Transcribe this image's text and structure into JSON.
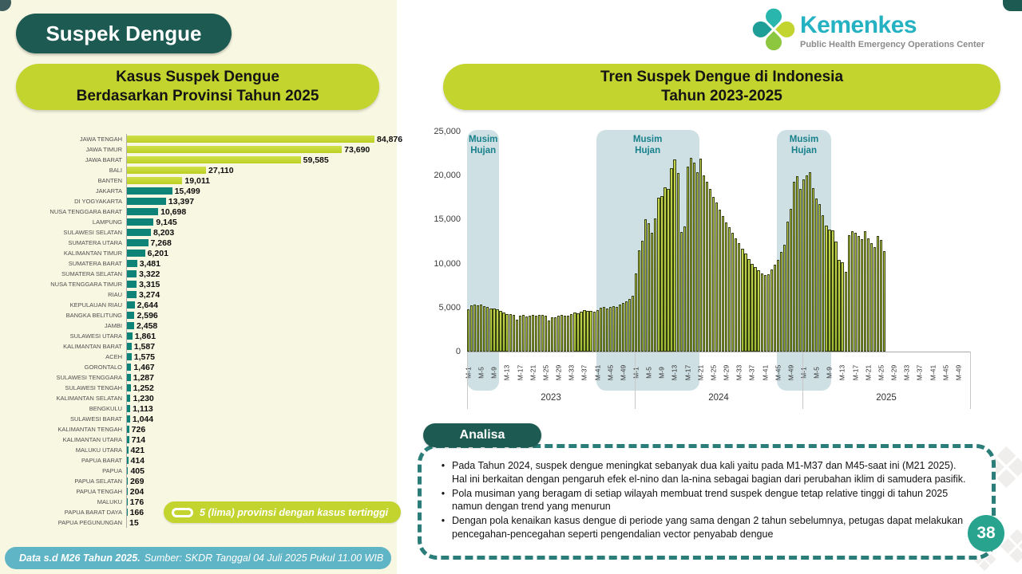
{
  "page": {
    "number": "38"
  },
  "header": {
    "title": "Suspek Dengue"
  },
  "logo": {
    "brand": "Kemenkes",
    "subtitle": "Public Health Emergency Operations Center"
  },
  "left_chart_panel": {
    "title_line1": "Kasus Suspek Dengue",
    "title_line2": "Berdasarkan Provinsi Tahun 2025",
    "legend_label": "5 (lima) provinsi dengan kasus tertinggi",
    "footnote_bold": "Data s.d M26 Tahun 2025.",
    "footnote_regular": "Sumber: SKDR Tanggal 04 Juli 2025 Pukul 11.00 WIB"
  },
  "right_chart_panel": {
    "title_line1": "Tren Suspek Dengue di Indonesia",
    "title_line2": "Tahun 2023-2025"
  },
  "analysis": {
    "title": "Analisa",
    "bullets": [
      "Pada Tahun 2024, suspek dengue meningkat sebanyak dua kali yaitu pada M1-M37 dan M45-saat ini (M21 2025). Hal ini berkaitan dengan pengaruh efek el-nino dan la-nina sebagai bagian dari perubahan iklim di samudera pasifik.",
      "Pola musiman yang beragam di setiap wilayah membuat trend suspek dengue tetap relative tinggi di tahun 2025 namun dengan trend yang menurun",
      "Dengan pola kenaikan kasus dengue di periode yang sama dengan 2 tahun sebelumnya, petugas dapat melakukan pencegahan-pencegahan seperti pengendalian vector penyabab dengue"
    ]
  },
  "colors": {
    "lime": "#c3d42e",
    "teal_bar": "#0e8478",
    "dark_teal": "#1d5a52",
    "season_band": "#cfe0e5",
    "footer_blue": "#5fb4c5",
    "badge_teal": "#28a38e",
    "trend_bar_border": "#333f12",
    "cream_background": "#f8f7e2"
  },
  "chart_data": [
    {
      "type": "bar",
      "orientation": "horizontal",
      "title": "Kasus Suspek Dengue Berdasarkan Provinsi Tahun 2025",
      "highlight_top_n": 5,
      "xlim": [
        0,
        84876
      ],
      "categories": [
        "JAWA TENGAH",
        "JAWA TIMUR",
        "JAWA BARAT",
        "BALI",
        "BANTEN",
        "JAKARTA",
        "DI YOGYAKARTA",
        "NUSA TENGGARA BARAT",
        "LAMPUNG",
        "SULAWESI SELATAN",
        "SUMATERA UTARA",
        "KALIMANTAN TIMUR",
        "SUMATERA BARAT",
        "SUMATERA SELATAN",
        "NUSA TENGGARA TIMUR",
        "RIAU",
        "KEPULAUAN RIAU",
        "BANGKA BELITUNG",
        "JAMBI",
        "SULAWESI UTARA",
        "KALIMANTAN BARAT",
        "ACEH",
        "GORONTALO",
        "SULAWESI TENGGARA",
        "SULAWESI TENGAH",
        "KALIMANTAN SELATAN",
        "BENGKULU",
        "SULAWESI BARAT",
        "KALIMANTAN TENGAH",
        "KALIMANTAN UTARA",
        "MALUKU UTARA",
        "PAPUA BARAT",
        "PAPUA",
        "PAPUA SELATAN",
        "PAPUA TENGAH",
        "MALUKU",
        "PAPUA BARAT DAYA",
        "PAPUA PEGUNUNGAN"
      ],
      "values": [
        84876,
        73690,
        59585,
        27110,
        19011,
        15499,
        13397,
        10698,
        9145,
        8203,
        7268,
        6201,
        3481,
        3322,
        3315,
        3274,
        2644,
        2596,
        2458,
        1861,
        1587,
        1575,
        1467,
        1287,
        1252,
        1230,
        1113,
        1044,
        726,
        714,
        421,
        414,
        405,
        269,
        204,
        176,
        166,
        15
      ]
    },
    {
      "type": "bar",
      "title": "Tren Suspek Dengue di Indonesia Tahun 2023-2025",
      "ylim": [
        0,
        25000
      ],
      "yticks": [
        0,
        5000,
        10000,
        15000,
        20000,
        25000
      ],
      "weeks_per_year": 52,
      "tick_labels": [
        "M-1",
        "M-5",
        "M-9",
        "M-13",
        "M-17",
        "M-21",
        "M-25",
        "M-29",
        "M-33",
        "M-37",
        "M-41",
        "M-45",
        "M-49"
      ],
      "series": [
        {
          "name": "2023",
          "values": [
            4800,
            5250,
            5300,
            5250,
            5300,
            5200,
            5050,
            4900,
            4850,
            4800,
            4650,
            4400,
            4300,
            4250,
            4200,
            3600,
            4100,
            4150,
            4000,
            4100,
            4150,
            4100,
            4200,
            4150,
            4100,
            3500,
            3900,
            3850,
            4100,
            4150,
            4100,
            4050,
            4300,
            4400,
            4350,
            4500,
            4700,
            4650,
            4600,
            4500,
            4700,
            5000,
            5050,
            4900,
            5100,
            5200,
            5100,
            5300,
            5500,
            5700,
            6000,
            6300
          ]
        },
        {
          "name": "2024",
          "values": [
            8900,
            11500,
            12600,
            15000,
            14600,
            13500,
            15100,
            17500,
            17700,
            18700,
            18500,
            20800,
            21800,
            20300,
            13600,
            14200,
            21000,
            22000,
            21500,
            20400,
            21900,
            20000,
            19300,
            18500,
            17600,
            16900,
            16100,
            15400,
            14700,
            14100,
            13500,
            12900,
            12300,
            11700,
            11100,
            10500,
            10000,
            9600,
            9200,
            8900,
            8700,
            8800,
            9300,
            9900,
            10400,
            11300,
            12100,
            14800,
            16200,
            19300,
            19900,
            18500
          ]
        },
        {
          "name": "2025",
          "values": [
            19600,
            20000,
            20400,
            18600,
            17400,
            16800,
            15500,
            14300,
            13900,
            13800,
            12500,
            10400,
            10100,
            9100,
            13200,
            13700,
            13500,
            13100,
            12800,
            13700,
            12900,
            12300,
            11900,
            13100,
            12700,
            11400
          ]
        }
      ],
      "season_bands": [
        {
          "label": "Musim Hujan",
          "start_slot": 0,
          "end_slot": 10
        },
        {
          "label": "Musim Hujan",
          "start_slot": 40,
          "end_slot": 72
        },
        {
          "label": "Musim Hujan",
          "start_slot": 96,
          "end_slot": 113
        }
      ]
    }
  ]
}
